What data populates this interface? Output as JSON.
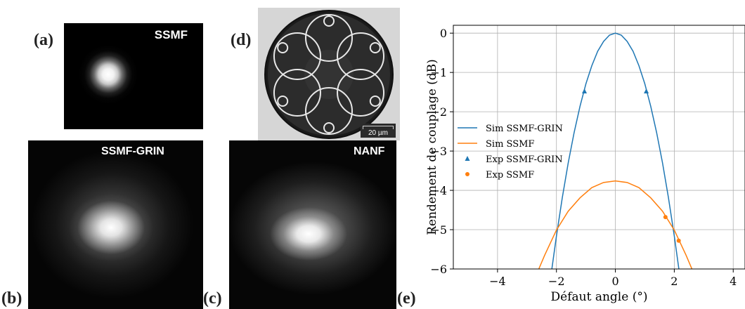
{
  "panels": {
    "a": {
      "label": "(a)",
      "title": "SSMF"
    },
    "b": {
      "label": "(b)",
      "title": "SSMF-GRIN"
    },
    "c": {
      "label": "(c)",
      "title": "NANF"
    },
    "d": {
      "label": "(d)",
      "scale_bar": "20 µm"
    },
    "e": {
      "label": "(e)"
    }
  },
  "chart_data": {
    "type": "line",
    "xlabel": "Défaut angle (°)",
    "ylabel": "Rendement de couplage (dB)",
    "xlim": [
      -5.5,
      4.4
    ],
    "ylim": [
      -6,
      0.2
    ],
    "xticks": [
      -4,
      -2,
      0,
      2,
      4
    ],
    "xtick_labels": [
      "−4",
      "−2",
      "0",
      "2",
      "4"
    ],
    "yticks": [
      0,
      -1,
      -2,
      -3,
      -4,
      -5,
      -6
    ],
    "ytick_labels": [
      "0",
      "−1",
      "−2",
      "−3",
      "−4",
      "−5",
      "−6"
    ],
    "grid": true,
    "legend_position": "center-left",
    "series": [
      {
        "name": "Sim SSMF-GRIN",
        "kind": "line",
        "color": "#1f77b4",
        "x": [
          -2.2,
          -2.0,
          -1.8,
          -1.6,
          -1.4,
          -1.2,
          -1.0,
          -0.8,
          -0.6,
          -0.4,
          -0.2,
          0,
          0.2,
          0.4,
          0.6,
          0.8,
          1.0,
          1.2,
          1.4,
          1.6,
          1.8,
          2.0,
          2.2
        ],
        "y": [
          -6.24,
          -5.16,
          -4.18,
          -3.3,
          -2.53,
          -1.86,
          -1.29,
          -0.83,
          -0.46,
          -0.21,
          -0.05,
          0,
          -0.05,
          -0.21,
          -0.46,
          -0.83,
          -1.29,
          -1.86,
          -2.53,
          -3.3,
          -4.18,
          -5.16,
          -6.24
        ]
      },
      {
        "name": "Sim SSMF",
        "kind": "line",
        "color": "#ff7f0e",
        "x": [
          -2.7,
          -2.4,
          -2.0,
          -1.6,
          -1.2,
          -0.8,
          -0.4,
          0,
          0.4,
          0.8,
          1.2,
          1.6,
          2.0,
          2.4,
          2.7
        ],
        "y": [
          -6.18,
          -5.65,
          -5.01,
          -4.53,
          -4.19,
          -3.93,
          -3.8,
          -3.76,
          -3.8,
          -3.93,
          -4.19,
          -4.53,
          -5.01,
          -5.65,
          -6.18
        ]
      },
      {
        "name": "Exp SSMF-GRIN",
        "kind": "marker",
        "marker": "triangle",
        "color": "#1f77b4",
        "x": [
          -1.05,
          1.05
        ],
        "y": [
          -1.48,
          -1.48
        ]
      },
      {
        "name": "Exp SSMF",
        "kind": "marker",
        "marker": "circle",
        "color": "#ff7f0e",
        "x": [
          1.7,
          2.15
        ],
        "y": [
          -4.68,
          -5.28
        ]
      }
    ]
  }
}
